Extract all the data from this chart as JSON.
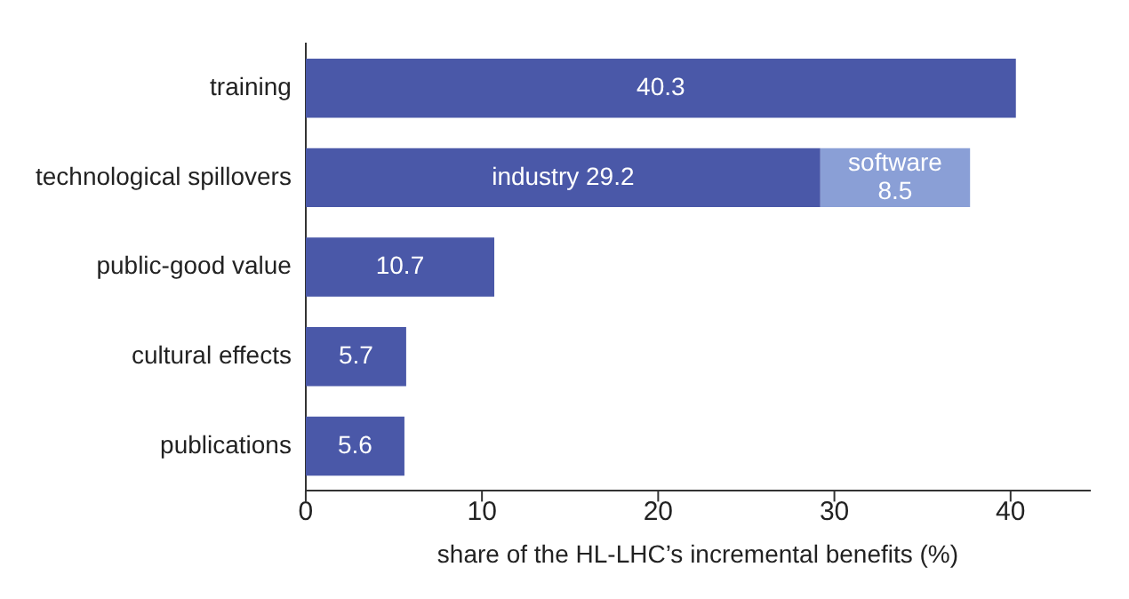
{
  "chart_data": {
    "type": "bar",
    "orientation": "horizontal",
    "stacked": true,
    "xlabel": "share of the HL-LHC’s incremental benefits (%)",
    "categories": [
      "training",
      "technological spillovers",
      "public-good value",
      "cultural effects",
      "publications"
    ],
    "series": [
      {
        "color": "#4a58a8",
        "values": [
          40.3,
          29.2,
          10.7,
          5.7,
          5.6
        ],
        "value_labels": [
          "40.3",
          "industry 29.2",
          "10.7",
          "5.7",
          "5.6"
        ]
      },
      {
        "color": "#8a9fd6",
        "values": [
          null,
          8.5,
          null,
          null,
          null
        ],
        "value_labels": [
          null,
          "software 8.5",
          null,
          null,
          null
        ]
      }
    ],
    "xlim": [
      0,
      44.5
    ],
    "xticks": [
      0,
      10,
      20,
      30,
      40
    ]
  }
}
